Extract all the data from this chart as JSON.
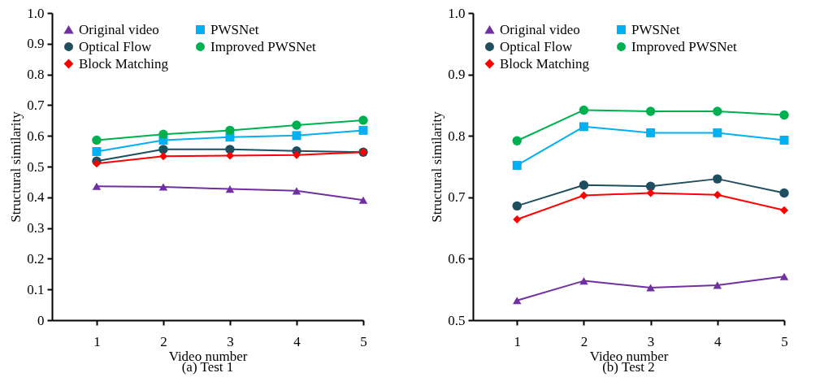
{
  "chart_data": [
    {
      "type": "line",
      "title": "(a) Test 1",
      "xlabel": "Video number",
      "ylabel": "Structural similarity",
      "x": [
        1,
        2,
        3,
        4,
        5
      ],
      "xlim": [
        0.33,
        5
      ],
      "xticks": [
        1,
        2,
        3,
        4,
        5
      ],
      "ylim": [
        0,
        1
      ],
      "yticks": [
        0,
        0.1,
        0.2,
        0.3,
        0.4,
        0.5,
        0.6,
        0.7,
        0.8,
        0.9,
        {
          "value": 1,
          "label": "1.0"
        }
      ],
      "grid": false,
      "legend": "top left",
      "series": [
        {
          "name": "Original video",
          "color": "#7030a0",
          "marker": "triangle",
          "values": [
            0.436,
            0.434,
            0.427,
            0.421,
            0.391
          ]
        },
        {
          "name": "Optical Flow",
          "color": "#1f4e5f",
          "marker": "circle",
          "values": [
            0.518,
            0.556,
            0.556,
            0.551,
            0.547
          ]
        },
        {
          "name": "Block Matching",
          "color": "#ff0000",
          "marker": "diamond",
          "values": [
            0.51,
            0.534,
            0.536,
            0.538,
            0.547
          ]
        },
        {
          "name": "PWSNet",
          "color": "#00b0f0",
          "marker": "square",
          "values": [
            0.549,
            0.586,
            0.596,
            0.601,
            0.618
          ]
        },
        {
          "name": "Improved PWSNet",
          "color": "#00b050",
          "marker": "circle",
          "values": [
            0.586,
            0.605,
            0.618,
            0.635,
            0.651
          ]
        }
      ]
    },
    {
      "type": "line",
      "title": "(b) Test 2",
      "xlabel": "Video number",
      "ylabel": "Structural similarity",
      "x": [
        1,
        2,
        3,
        4,
        5
      ],
      "xlim": [
        0.34,
        5
      ],
      "xticks": [
        1,
        2,
        3,
        4,
        5
      ],
      "ylim": [
        0.5,
        1
      ],
      "yticks": [
        0.5,
        0.6,
        0.7,
        0.8,
        0.9,
        {
          "value": 1,
          "label": "1.0"
        }
      ],
      "grid": false,
      "legend": "top left",
      "series": [
        {
          "name": "Original video",
          "color": "#7030a0",
          "marker": "triangle",
          "values": [
            0.532,
            0.564,
            0.553,
            0.557,
            0.571
          ]
        },
        {
          "name": "Optical Flow",
          "color": "#1f4e5f",
          "marker": "circle",
          "values": [
            0.686,
            0.72,
            0.718,
            0.73,
            0.707
          ]
        },
        {
          "name": "Block Matching",
          "color": "#ff0000",
          "marker": "diamond",
          "values": [
            0.664,
            0.703,
            0.707,
            0.704,
            0.679
          ]
        },
        {
          "name": "PWSNet",
          "color": "#00b0f0",
          "marker": "square",
          "values": [
            0.752,
            0.815,
            0.805,
            0.805,
            0.793
          ]
        },
        {
          "name": "Improved PWSNet",
          "color": "#00b050",
          "marker": "circle",
          "values": [
            0.792,
            0.842,
            0.84,
            0.84,
            0.834
          ]
        }
      ]
    }
  ]
}
